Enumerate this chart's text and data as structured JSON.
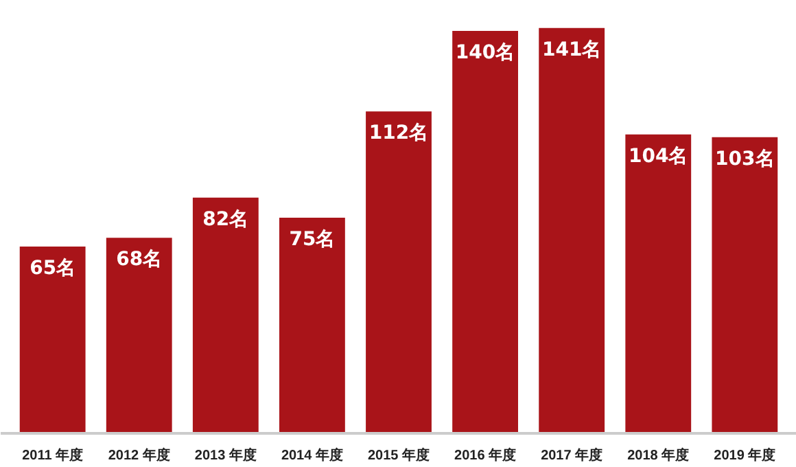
{
  "chart_data": {
    "type": "bar",
    "categories": [
      "2011 年度",
      "2012 年度",
      "2013 年度",
      "2014 年度",
      "2015 年度",
      "2016 年度",
      "2017 年度",
      "2018 年度",
      "2019 年度"
    ],
    "values": [
      65,
      68,
      82,
      75,
      112,
      140,
      141,
      104,
      103
    ],
    "value_labels": [
      "65名",
      "68名",
      "82名",
      "75名",
      "112名",
      "140名",
      "141名",
      "104名",
      "103名"
    ],
    "color": "#a91419",
    "tick_labels": "x",
    "grid": false
  }
}
